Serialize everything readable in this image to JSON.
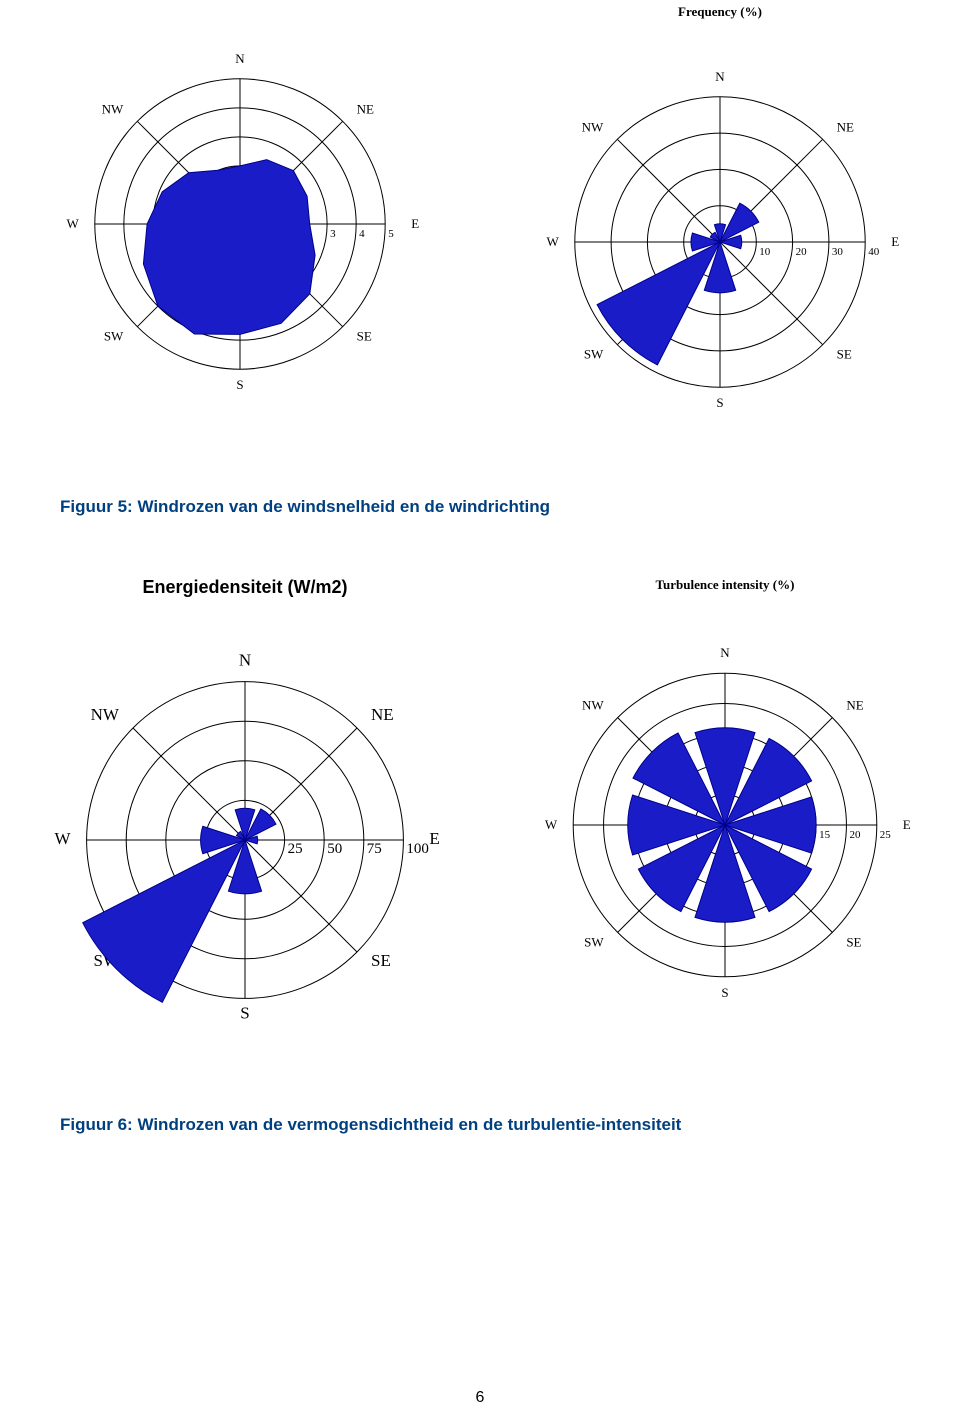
{
  "page_number": "6",
  "caption1": "Figuur 5: Windrozen van de windsnelheid en de windrichting",
  "caption2": "Figuur 6: Windrozen van de vermogensdichtheid en de turbulentie-intensiteit",
  "colors": {
    "fill": "#1a1cc7",
    "stroke": "#000000",
    "grid": "#000000",
    "background": "#ffffff",
    "caption": "#004080"
  },
  "charts": {
    "wind_speed": {
      "title": "",
      "type": "polar-filled",
      "rings": [
        1,
        2,
        3,
        4,
        5
      ],
      "tick_labels": [
        "3",
        "4",
        "5"
      ],
      "tick_fontsize": 11,
      "dir_fontsize": 13,
      "directions": [
        "N",
        "NE",
        "E",
        "SE",
        "S",
        "SW",
        "W",
        "NW"
      ],
      "values_dir_16": [
        2.0,
        2.4,
        2.6,
        2.5,
        2.4,
        2.8,
        3.4,
        3.7,
        3.8,
        4.1,
        4.0,
        3.6,
        3.2,
        2.9,
        2.5,
        2.0
      ]
    },
    "frequency": {
      "title": "Frequency (%)",
      "title_fontsize": 13,
      "type": "polar-wedges",
      "rings": [
        10,
        20,
        30,
        40
      ],
      "tick_labels": [
        "10",
        "20",
        "30",
        "40"
      ],
      "tick_fontsize": 11,
      "dir_fontsize": 13,
      "directions": [
        "N",
        "NE",
        "E",
        "SE",
        "S",
        "SW",
        "W",
        "NW"
      ],
      "wedge_values": {
        "N": 5,
        "NE": 12,
        "E": 6,
        "SE": 0,
        "S": 14,
        "SW": 38,
        "W": 8,
        "NW": 3
      }
    },
    "energy": {
      "title": "Energiedensiteit (W/m2)",
      "title_fontsize": 18,
      "type": "polar-wedges",
      "rings": [
        25,
        50,
        75,
        100
      ],
      "tick_labels": [
        "25",
        "50",
        "75",
        "100"
      ],
      "tick_fontsize": 15,
      "dir_fontsize": 17,
      "directions": [
        "N",
        "NE",
        "E",
        "SE",
        "S",
        "SW",
        "W",
        "NW"
      ],
      "wedge_values": {
        "N": 20,
        "NE": 22,
        "E": 8,
        "SE": 0,
        "S": 34,
        "SW": 115,
        "W": 28,
        "NW": 6
      }
    },
    "turbulence": {
      "title": "Turbulence intensity (%)",
      "title_fontsize": 13,
      "type": "polar-wedges",
      "rings": [
        5,
        10,
        15,
        20,
        25
      ],
      "tick_labels": [
        "15",
        "20",
        "25"
      ],
      "tick_start_ring": 3,
      "tick_fontsize": 11,
      "dir_fontsize": 13,
      "directions": [
        "N",
        "NE",
        "E",
        "SE",
        "S",
        "SW",
        "W",
        "NW"
      ],
      "wedge_values": {
        "N": 16,
        "NE": 16,
        "E": 15,
        "SE": 16,
        "S": 16,
        "SW": 16,
        "W": 16,
        "NW": 17
      }
    }
  }
}
